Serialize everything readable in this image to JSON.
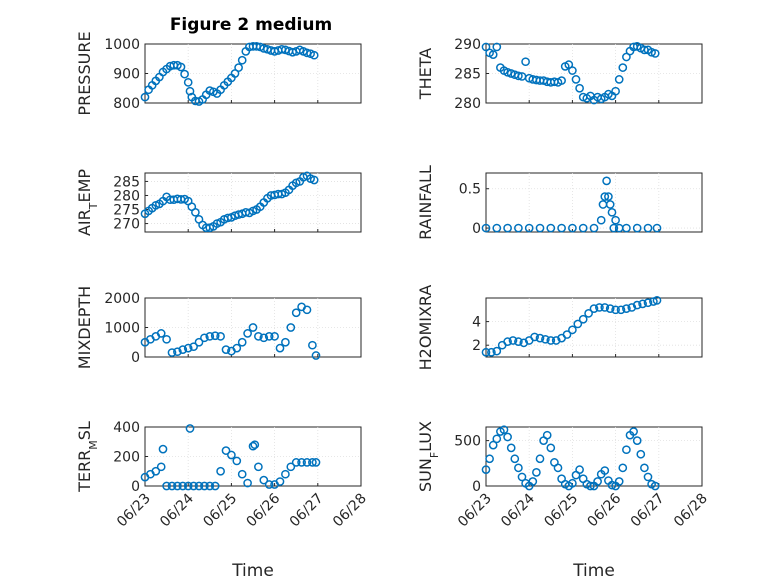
{
  "figure_title": "Figure 2 medium",
  "colors": {
    "marker": "#0072bd",
    "axes": "#262626",
    "grid": "#dfdfdf"
  },
  "chart_data": [
    {
      "type": "scatter",
      "panel": "top-left",
      "ylabel": "PRESSURE",
      "ylim": [
        800,
        1000
      ],
      "yticks": [
        800,
        900,
        1000
      ],
      "xlim": [
        "06/23",
        "06/27"
      ],
      "xticks": [
        "06/23",
        "06/24",
        "06/25",
        "06/26",
        "06/27",
        "06/28"
      ],
      "show_xticklabels": false,
      "grid": true,
      "series": [
        {
          "x": [
            "06/23 00:00",
            "06/23 02:00",
            "06/23 04:00",
            "06/23 06:00",
            "06/23 08:00",
            "06/23 10:00",
            "06/23 12:00",
            "06/23 14:00",
            "06/23 16:00",
            "06/23 18:00",
            "06/23 20:00",
            "06/23 22:00",
            "06/24 00:00",
            "06/24 01:00",
            "06/24 02:00",
            "06/24 04:00",
            "06/24 06:00",
            "06/24 08:00",
            "06/24 10:00",
            "06/24 12:00",
            "06/24 14:00",
            "06/24 16:00",
            "06/24 18:00",
            "06/24 20:00",
            "06/24 22:00",
            "06/25 00:00",
            "06/25 02:00",
            "06/25 04:00",
            "06/25 06:00",
            "06/25 08:00",
            "06/25 10:00",
            "06/25 12:00",
            "06/25 14:00",
            "06/25 16:00",
            "06/25 18:00",
            "06/25 20:00",
            "06/25 22:00",
            "06/26 00:00",
            "06/26 02:00",
            "06/26 04:00",
            "06/26 06:00",
            "06/26 08:00",
            "06/26 10:00",
            "06/26 12:00",
            "06/26 14:00",
            "06/26 16:00",
            "06/26 18:00",
            "06/26 20:00",
            "06/26 22:00"
          ],
          "y": [
            820,
            845,
            860,
            875,
            888,
            905,
            915,
            925,
            928,
            928,
            922,
            898,
            870,
            840,
            820,
            807,
            805,
            812,
            828,
            842,
            838,
            832,
            845,
            860,
            872,
            885,
            900,
            920,
            945,
            975,
            990,
            992,
            992,
            990,
            985,
            982,
            978,
            975,
            978,
            982,
            980,
            976,
            972,
            975,
            980,
            975,
            970,
            967,
            962
          ]
        }
      ]
    },
    {
      "type": "scatter",
      "panel": "top-right",
      "ylabel": "THETA",
      "ylim": [
        280,
        290
      ],
      "yticks": [
        280,
        285,
        290
      ],
      "xlim": [
        "06/23",
        "06/27"
      ],
      "xticks": [
        "06/23",
        "06/24",
        "06/25",
        "06/26",
        "06/27",
        "06/28"
      ],
      "show_xticklabels": false,
      "grid": true,
      "series": [
        {
          "x": [
            "06/23 00:00",
            "06/23 02:00",
            "06/23 04:00",
            "06/23 06:00",
            "06/23 08:00",
            "06/23 10:00",
            "06/23 12:00",
            "06/23 14:00",
            "06/23 16:00",
            "06/23 18:00",
            "06/23 20:00",
            "06/23 22:00",
            "06/24 00:00",
            "06/24 02:00",
            "06/24 04:00",
            "06/24 06:00",
            "06/24 08:00",
            "06/24 10:00",
            "06/24 12:00",
            "06/24 14:00",
            "06/24 16:00",
            "06/24 18:00",
            "06/24 20:00",
            "06/24 22:00",
            "06/25 00:00",
            "06/25 02:00",
            "06/25 04:00",
            "06/25 06:00",
            "06/25 08:00",
            "06/25 10:00",
            "06/25 12:00",
            "06/25 14:00",
            "06/25 16:00",
            "06/25 18:00",
            "06/25 20:00",
            "06/25 22:00",
            "06/26 00:00",
            "06/26 02:00",
            "06/26 04:00",
            "06/26 06:00",
            "06/26 08:00",
            "06/26 10:00",
            "06/26 12:00",
            "06/26 14:00",
            "06/26 16:00",
            "06/26 18:00",
            "06/26 20:00",
            "06/26 22:00"
          ],
          "y": [
            289.5,
            288.5,
            288.2,
            289.5,
            286,
            285.5,
            285.2,
            285,
            284.8,
            284.6,
            284.5,
            287,
            284.2,
            284,
            283.9,
            283.8,
            283.8,
            283.6,
            283.5,
            283.6,
            283.5,
            283.8,
            286.2,
            286.5,
            285.5,
            284,
            282.5,
            281,
            280.8,
            281.2,
            280.5,
            281,
            280.7,
            281,
            281.5,
            281.2,
            282,
            284,
            286,
            287.8,
            288.8,
            289.5,
            289.6,
            289.3,
            289,
            289,
            288.6,
            288.4
          ]
        }
      ]
    },
    {
      "type": "scatter",
      "panel": "second-left",
      "ylabel": "AIR_TEMP",
      "ylim": [
        267,
        288
      ],
      "yticks": [
        270,
        275,
        280,
        285
      ],
      "xlim": [
        "06/23",
        "06/27"
      ],
      "xticks": [
        "06/23",
        "06/24",
        "06/25",
        "06/26",
        "06/27",
        "06/28"
      ],
      "show_xticklabels": false,
      "grid": true,
      "series": [
        {
          "x": [
            "06/23 00:00",
            "06/23 02:00",
            "06/23 04:00",
            "06/23 06:00",
            "06/23 08:00",
            "06/23 10:00",
            "06/23 12:00",
            "06/23 14:00",
            "06/23 16:00",
            "06/23 18:00",
            "06/23 20:00",
            "06/23 22:00",
            "06/24 00:00",
            "06/24 02:00",
            "06/24 04:00",
            "06/24 06:00",
            "06/24 08:00",
            "06/24 10:00",
            "06/24 12:00",
            "06/24 14:00",
            "06/24 16:00",
            "06/24 18:00",
            "06/24 20:00",
            "06/24 22:00",
            "06/25 00:00",
            "06/25 02:00",
            "06/25 04:00",
            "06/25 06:00",
            "06/25 08:00",
            "06/25 10:00",
            "06/25 12:00",
            "06/25 14:00",
            "06/25 16:00",
            "06/25 18:00",
            "06/25 20:00",
            "06/25 22:00",
            "06/26 00:00",
            "06/26 02:00",
            "06/26 04:00",
            "06/26 06:00",
            "06/26 08:00",
            "06/26 10:00",
            "06/26 12:00",
            "06/26 14:00",
            "06/26 16:00",
            "06/26 18:00",
            "06/26 20:00",
            "06/26 22:00"
          ],
          "y": [
            273.5,
            274.5,
            275.5,
            276.5,
            277,
            278,
            279.5,
            278.5,
            278.5,
            278.8,
            278.6,
            278.7,
            278,
            276,
            274,
            271.5,
            269.5,
            268.5,
            268.5,
            269,
            270,
            270.5,
            271.5,
            272,
            272.2,
            272.8,
            273.2,
            273.5,
            274,
            273.8,
            274.5,
            275,
            276,
            277.5,
            279,
            280,
            280.2,
            280.5,
            280.5,
            281,
            282,
            283.5,
            284.5,
            285,
            286.5,
            287,
            286,
            285.5
          ]
        }
      ]
    },
    {
      "type": "scatter",
      "panel": "second-right",
      "ylabel": "RAINFALL",
      "ylim": [
        -0.05,
        0.7
      ],
      "yticks": [
        0,
        0.5
      ],
      "xlim": [
        "06/23",
        "06/27"
      ],
      "xticks": [
        "06/23",
        "06/24",
        "06/25",
        "06/26",
        "06/27",
        "06/28"
      ],
      "show_xticklabels": false,
      "grid": true,
      "series": [
        {
          "x": [
            "06/23 00:00",
            "06/23 06:00",
            "06/23 12:00",
            "06/23 18:00",
            "06/24 00:00",
            "06/24 06:00",
            "06/24 12:00",
            "06/24 18:00",
            "06/25 00:00",
            "06/25 06:00",
            "06/25 12:00",
            "06/25 16:00",
            "06/25 17:00",
            "06/25 18:00",
            "06/25 19:00",
            "06/25 20:00",
            "06/25 21:00",
            "06/25 22:00",
            "06/25 23:00",
            "06/26 00:00",
            "06/26 02:00",
            "06/26 06:00",
            "06/26 12:00",
            "06/26 18:00",
            "06/26 23:00"
          ],
          "y": [
            0,
            0,
            0,
            0,
            0,
            0,
            0,
            0,
            0,
            0,
            0,
            0.1,
            0.3,
            0.4,
            0.6,
            0.4,
            0.3,
            0.2,
            0,
            0.1,
            0,
            0,
            0,
            0,
            0
          ]
        }
      ]
    },
    {
      "type": "scatter",
      "panel": "third-left",
      "ylabel": "MIXDEPTH",
      "ylim": [
        0,
        2000
      ],
      "yticks": [
        0,
        1000,
        2000
      ],
      "xlim": [
        "06/23",
        "06/27"
      ],
      "xticks": [
        "06/23",
        "06/24",
        "06/25",
        "06/26",
        "06/27",
        "06/28"
      ],
      "show_xticklabels": false,
      "grid": true,
      "series": [
        {
          "x": [
            "06/23 00:00",
            "06/23 03:00",
            "06/23 06:00",
            "06/23 09:00",
            "06/23 12:00",
            "06/23 15:00",
            "06/23 18:00",
            "06/23 21:00",
            "06/24 00:00",
            "06/24 03:00",
            "06/24 06:00",
            "06/24 09:00",
            "06/24 12:00",
            "06/24 15:00",
            "06/24 18:00",
            "06/24 21:00",
            "06/25 00:00",
            "06/25 03:00",
            "06/25 06:00",
            "06/25 09:00",
            "06/25 12:00",
            "06/25 15:00",
            "06/25 18:00",
            "06/25 21:00",
            "06/26 00:00",
            "06/26 03:00",
            "06/26 06:00",
            "06/26 09:00",
            "06/26 12:00",
            "06/26 15:00",
            "06/26 18:00",
            "06/26 21:00",
            "06/26 23:00"
          ],
          "y": [
            500,
            600,
            700,
            800,
            600,
            150,
            180,
            250,
            300,
            350,
            500,
            650,
            700,
            720,
            700,
            250,
            200,
            300,
            500,
            800,
            1000,
            700,
            650,
            700,
            700,
            300,
            500,
            1000,
            1500,
            1700,
            1600,
            400,
            50
          ]
        }
      ]
    },
    {
      "type": "scatter",
      "panel": "third-right",
      "ylabel": "H2OMIXRA",
      "ylim": [
        1,
        6
      ],
      "yticks": [
        2,
        4
      ],
      "xlim": [
        "06/23",
        "06/27"
      ],
      "xticks": [
        "06/23",
        "06/24",
        "06/25",
        "06/26",
        "06/27",
        "06/28"
      ],
      "show_xticklabels": false,
      "grid": true,
      "series": [
        {
          "x": [
            "06/23 00:00",
            "06/23 03:00",
            "06/23 06:00",
            "06/23 09:00",
            "06/23 12:00",
            "06/23 15:00",
            "06/23 18:00",
            "06/23 21:00",
            "06/24 00:00",
            "06/24 03:00",
            "06/24 06:00",
            "06/24 09:00",
            "06/24 12:00",
            "06/24 15:00",
            "06/24 18:00",
            "06/24 21:00",
            "06/25 00:00",
            "06/25 03:00",
            "06/25 06:00",
            "06/25 09:00",
            "06/25 12:00",
            "06/25 15:00",
            "06/25 18:00",
            "06/25 21:00",
            "06/26 00:00",
            "06/26 03:00",
            "06/26 06:00",
            "06/26 09:00",
            "06/26 12:00",
            "06/26 15:00",
            "06/26 18:00",
            "06/26 21:00",
            "06/26 23:00"
          ],
          "y": [
            1.4,
            1.4,
            1.5,
            2.0,
            2.3,
            2.4,
            2.3,
            2.2,
            2.4,
            2.7,
            2.6,
            2.5,
            2.4,
            2.4,
            2.6,
            2.9,
            3.3,
            3.8,
            4.2,
            4.7,
            5.1,
            5.2,
            5.2,
            5.1,
            5.0,
            5.0,
            5.1,
            5.2,
            5.4,
            5.5,
            5.6,
            5.7,
            5.8
          ]
        }
      ]
    },
    {
      "type": "scatter",
      "panel": "bottom-left",
      "ylabel": "TERR_MSL",
      "ylim": [
        0,
        400
      ],
      "yticks": [
        0,
        200,
        400
      ],
      "xlim": [
        "06/23",
        "06/27"
      ],
      "xticks": [
        "06/23",
        "06/24",
        "06/25",
        "06/26",
        "06/27",
        "06/28"
      ],
      "show_xticklabels": true,
      "xlabel": "Time",
      "grid": true,
      "series": [
        {
          "x": [
            "06/23 00:00",
            "06/23 03:00",
            "06/23 06:00",
            "06/23 09:00",
            "06/23 10:00",
            "06/23 12:00",
            "06/23 15:00",
            "06/23 18:00",
            "06/23 21:00",
            "06/24 00:00",
            "06/24 01:00",
            "06/24 03:00",
            "06/24 06:00",
            "06/24 09:00",
            "06/24 12:00",
            "06/24 15:00",
            "06/24 18:00",
            "06/24 21:00",
            "06/25 00:00",
            "06/25 03:00",
            "06/25 06:00",
            "06/25 09:00",
            "06/25 12:00",
            "06/25 13:00",
            "06/25 15:00",
            "06/25 18:00",
            "06/25 21:00",
            "06/26 00:00",
            "06/26 03:00",
            "06/26 06:00",
            "06/26 09:00",
            "06/26 12:00",
            "06/26 15:00",
            "06/26 18:00",
            "06/26 21:00",
            "06/26 23:00"
          ],
          "y": [
            60,
            80,
            100,
            130,
            250,
            0,
            0,
            0,
            0,
            0,
            390,
            0,
            0,
            0,
            0,
            0,
            100,
            240,
            210,
            170,
            80,
            20,
            270,
            280,
            130,
            40,
            10,
            10,
            30,
            80,
            130,
            160,
            160,
            160,
            160,
            160
          ]
        }
      ]
    },
    {
      "type": "scatter",
      "panel": "bottom-right",
      "ylabel": "SUN_FLUX",
      "ylim": [
        0,
        650
      ],
      "yticks": [
        0,
        500
      ],
      "xlim": [
        "06/23",
        "06/27"
      ],
      "xticks": [
        "06/23",
        "06/24",
        "06/25",
        "06/26",
        "06/27",
        "06/28"
      ],
      "show_xticklabels": true,
      "xlabel": "Time",
      "grid": true,
      "series": [
        {
          "x": [
            "06/23 00:00",
            "06/23 02:00",
            "06/23 04:00",
            "06/23 06:00",
            "06/23 08:00",
            "06/23 10:00",
            "06/23 12:00",
            "06/23 14:00",
            "06/23 16:00",
            "06/23 18:00",
            "06/23 20:00",
            "06/23 22:00",
            "06/24 00:00",
            "06/24 02:00",
            "06/24 04:00",
            "06/24 06:00",
            "06/24 08:00",
            "06/24 10:00",
            "06/24 12:00",
            "06/24 14:00",
            "06/24 16:00",
            "06/24 18:00",
            "06/24 20:00",
            "06/24 22:00",
            "06/25 00:00",
            "06/25 02:00",
            "06/25 04:00",
            "06/25 06:00",
            "06/25 08:00",
            "06/25 10:00",
            "06/25 12:00",
            "06/25 14:00",
            "06/25 16:00",
            "06/25 18:00",
            "06/25 20:00",
            "06/25 22:00",
            "06/26 00:00",
            "06/26 02:00",
            "06/26 04:00",
            "06/26 06:00",
            "06/26 08:00",
            "06/26 10:00",
            "06/26 12:00",
            "06/26 14:00",
            "06/26 16:00",
            "06/26 18:00",
            "06/26 20:00",
            "06/26 22:00"
          ],
          "y": [
            180,
            300,
            450,
            520,
            600,
            620,
            540,
            420,
            300,
            200,
            100,
            30,
            0,
            50,
            150,
            300,
            500,
            560,
            420,
            260,
            200,
            80,
            20,
            0,
            30,
            120,
            180,
            80,
            20,
            0,
            0,
            50,
            130,
            170,
            60,
            10,
            0,
            50,
            200,
            400,
            560,
            600,
            500,
            350,
            200,
            100,
            20,
            0
          ]
        }
      ]
    }
  ]
}
